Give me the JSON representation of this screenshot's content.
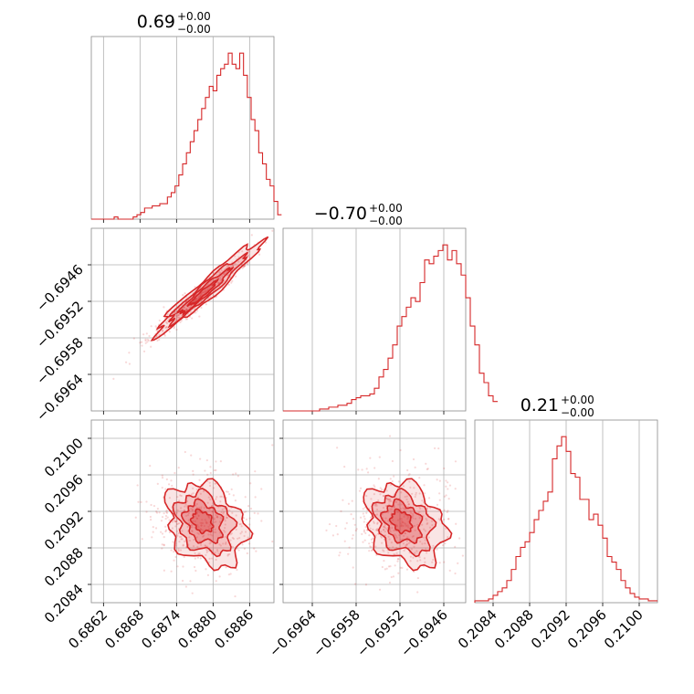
{
  "chart_data": [
    {
      "type": "histogram",
      "panel": "diag-1",
      "title": {
        "value": "0.69",
        "plus": "+0.00",
        "minus": "−0.00"
      },
      "xlim": [
        0.686,
        0.689
      ],
      "bins": {
        "x0": 0.686,
        "width": 6.25e-05,
        "counts": [
          0,
          0,
          0,
          0,
          0,
          0,
          1,
          0,
          0,
          0,
          0,
          1,
          2,
          3,
          5,
          5,
          6,
          6,
          7,
          7,
          10,
          12,
          15,
          20,
          25,
          30,
          35,
          40,
          45,
          50,
          55,
          60,
          58,
          65,
          68,
          70,
          75,
          70,
          68,
          75,
          65,
          55,
          45,
          40,
          30,
          25,
          18,
          15,
          8,
          2
        ]
      },
      "xticks": [
        "0.6862",
        "0.6868",
        "0.6874",
        "0.6880",
        "0.6886"
      ],
      "xtick_values": [
        0.6862,
        0.6868,
        0.6874,
        0.688,
        0.6886
      ],
      "color": "#d62728"
    },
    {
      "type": "scatter",
      "panel": "pair-1-2",
      "xlim": [
        0.686,
        0.689
      ],
      "ylim": [
        -0.697,
        -0.694
      ],
      "yticks": [
        "−0.6946",
        "−0.6952",
        "−0.6958",
        "−0.6964"
      ],
      "ytick_values": [
        -0.6946,
        -0.6952,
        -0.6958,
        -0.6964
      ],
      "trend": {
        "x": [
          0.6874,
          0.6886
        ],
        "y": [
          -0.6958,
          -0.6944
        ]
      },
      "contour_center": {
        "x": 0.6878,
        "y": -0.6951
      },
      "color": "#d62728"
    },
    {
      "type": "histogram",
      "panel": "diag-2",
      "title": {
        "value": "−0.70",
        "plus": "+0.00",
        "minus": "−0.00"
      },
      "xlim": [
        -0.6968,
        -0.6943
      ],
      "bins": {
        "x0": -0.6968,
        "width": 6.25e-05,
        "counts": [
          0,
          0,
          0,
          0,
          0,
          0,
          0,
          0,
          1,
          1,
          2,
          2,
          3,
          3,
          4,
          6,
          7,
          8,
          8,
          9,
          12,
          18,
          22,
          28,
          35,
          45,
          50,
          55,
          60,
          58,
          68,
          80,
          78,
          82,
          85,
          88,
          80,
          85,
          78,
          72,
          60,
          45,
          35,
          20,
          15,
          8,
          5
        ]
      },
      "color": "#d62728"
    },
    {
      "type": "scatter",
      "panel": "pair-1-3",
      "xlim": [
        0.686,
        0.689
      ],
      "ylim": [
        0.2082,
        0.2102
      ],
      "yticks": [
        "0.2100",
        "0.2096",
        "0.2092",
        "0.2088",
        "0.2084"
      ],
      "ytick_values": [
        0.21,
        0.2096,
        0.2092,
        0.2088,
        0.2084
      ],
      "contour_center": {
        "x": 0.6878,
        "y": 0.2091
      },
      "color": "#d62728"
    },
    {
      "type": "scatter",
      "panel": "pair-2-3",
      "xlim": [
        -0.6968,
        -0.6943
      ],
      "ylim": [
        0.2082,
        0.2102
      ],
      "xticks": [
        "−0.6964",
        "−0.6958",
        "−0.6952",
        "−0.6946"
      ],
      "xtick_values": [
        -0.6964,
        -0.6958,
        -0.6952,
        -0.6946
      ],
      "contour_center": {
        "x": -0.6952,
        "y": 0.2091
      },
      "color": "#d62728"
    },
    {
      "type": "histogram",
      "panel": "diag-3",
      "title": {
        "value": "0.21",
        "plus": "+0.00",
        "minus": "−0.00"
      },
      "xlim": [
        0.2082,
        0.2102
      ],
      "bins": {
        "x0": 0.2082,
        "width": 5e-05,
        "counts": [
          1,
          1,
          1,
          2,
          4,
          6,
          8,
          12,
          18,
          25,
          30,
          33,
          38,
          45,
          50,
          55,
          60,
          78,
          85,
          90,
          82,
          70,
          68,
          56,
          56,
          45,
          48,
          42,
          35,
          25,
          22,
          18,
          12,
          8,
          5,
          3,
          2,
          2,
          1,
          1
        ]
      },
      "xticks": [
        "0.2084",
        "0.2088",
        "0.2092",
        "0.2096",
        "0.2100"
      ],
      "xtick_values": [
        0.2084,
        0.2088,
        0.2092,
        0.2096,
        0.21
      ],
      "color": "#d62728"
    }
  ]
}
